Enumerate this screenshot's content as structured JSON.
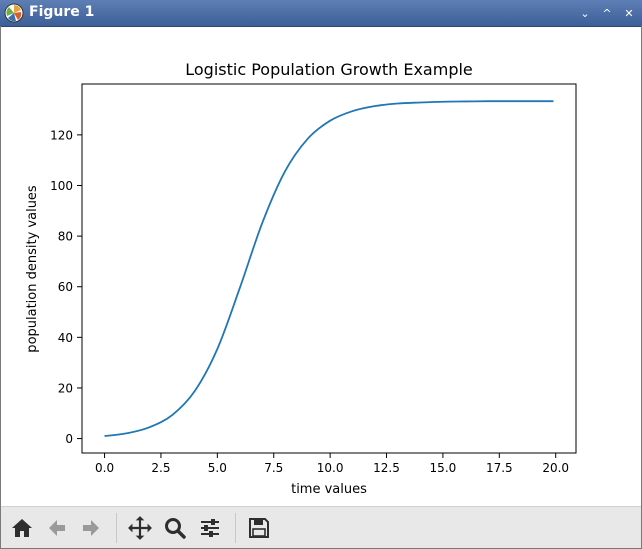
{
  "window": {
    "title": "Figure 1",
    "controls": {
      "minimize": "⌄",
      "maximize": "^",
      "close": "✕"
    }
  },
  "toolbar": {
    "icons": [
      "home-icon",
      "back-arrow-icon",
      "forward-arrow-icon",
      "pan-icon",
      "zoom-icon",
      "configure-subplots-icon",
      "save-icon"
    ]
  },
  "colors": {
    "series": "#1f77b4",
    "titlebar": "#4a6ca6",
    "toolbar": "#e8e8e8"
  },
  "chart_data": {
    "type": "line",
    "title": "Logistic Population Growth Example",
    "xlabel": "time values",
    "ylabel": "population density values",
    "xlim": [
      -1.0,
      20.9
    ],
    "ylim": [
      -5.7,
      140.1
    ],
    "xticks": [
      0.0,
      2.5,
      5.0,
      7.5,
      10.0,
      12.5,
      15.0,
      17.5,
      20.0
    ],
    "xtick_labels": [
      "0.0",
      "2.5",
      "5.0",
      "7.5",
      "10.0",
      "12.5",
      "15.0",
      "17.5",
      "20.0"
    ],
    "yticks": [
      0,
      20,
      40,
      60,
      80,
      100,
      120
    ],
    "ytick_labels": [
      "0",
      "20",
      "40",
      "60",
      "80",
      "100",
      "120"
    ],
    "grid": false,
    "legend": "none",
    "series": [
      {
        "x": [
          0,
          1,
          2,
          3,
          4,
          5,
          6,
          7,
          8,
          9,
          10,
          11,
          12,
          13,
          14,
          15,
          16,
          17,
          18,
          19,
          19.9
        ],
        "y": [
          1.0,
          2.1,
          4.5,
          9.3,
          18.8,
          35.4,
          59.6,
          85.4,
          105.6,
          118.4,
          125.6,
          129.4,
          131.4,
          132.4,
          132.8,
          133.1,
          133.2,
          133.3,
          133.3,
          133.3,
          133.3
        ]
      }
    ]
  }
}
